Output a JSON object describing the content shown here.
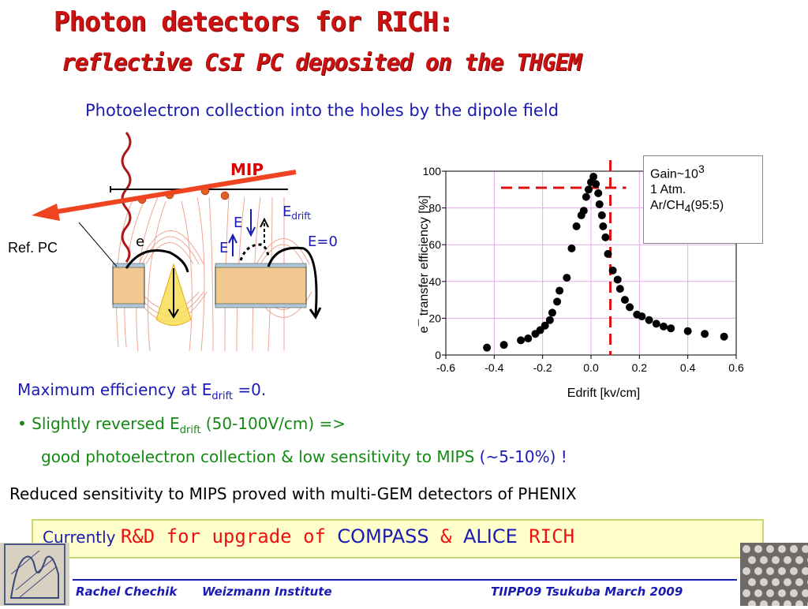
{
  "slide": {
    "title_line1": "Photon detectors for RICH:",
    "title_line2": "reflective CsI PC deposited on the THGEM",
    "subtitle": "Photoelectron  collection into the holes by the dipole field"
  },
  "diagram": {
    "mip_label": "MIP",
    "e_label": "E",
    "edrift_label": "E",
    "edrift_sub": "drift",
    "e0_label": "E=0",
    "electron_label": "e",
    "refpc_label": "Ref. PC"
  },
  "chart_data": {
    "type": "scatter",
    "xlabel": "Edrift [kv/cm]",
    "ylabel": "e¯ transfer efficiency [%]",
    "xlim": [
      -0.6,
      0.6
    ],
    "ylim": [
      0,
      100
    ],
    "xticks": [
      "-0.6",
      "-0.4",
      "-0.2",
      "0.0",
      "0.2",
      "0.4",
      "0.6"
    ],
    "yticks": [
      "0",
      "20",
      "40",
      "60",
      "80",
      "100"
    ],
    "grid": true,
    "points": [
      [
        -0.43,
        4
      ],
      [
        -0.36,
        5.5
      ],
      [
        -0.29,
        8
      ],
      [
        -0.26,
        9
      ],
      [
        -0.23,
        11.5
      ],
      [
        -0.21,
        13.5
      ],
      [
        -0.19,
        16
      ],
      [
        -0.17,
        19
      ],
      [
        -0.16,
        23
      ],
      [
        -0.14,
        29
      ],
      [
        -0.13,
        35
      ],
      [
        -0.1,
        42
      ],
      [
        -0.08,
        58
      ],
      [
        -0.06,
        70
      ],
      [
        -0.04,
        76
      ],
      [
        -0.03,
        78.5
      ],
      [
        -0.02,
        86
      ],
      [
        -0.01,
        90
      ],
      [
        0.0,
        94
      ],
      [
        0.01,
        97
      ],
      [
        0.02,
        93
      ],
      [
        0.03,
        88
      ],
      [
        0.035,
        82
      ],
      [
        0.045,
        76
      ],
      [
        0.05,
        70
      ],
      [
        0.06,
        64
      ],
      [
        0.07,
        55
      ],
      [
        0.09,
        46
      ],
      [
        0.11,
        41
      ],
      [
        0.12,
        36
      ],
      [
        0.14,
        30
      ],
      [
        0.16,
        26
      ],
      [
        0.19,
        22
      ],
      [
        0.21,
        21
      ],
      [
        0.24,
        19
      ],
      [
        0.27,
        17
      ],
      [
        0.3,
        15.5
      ],
      [
        0.33,
        14.5
      ],
      [
        0.4,
        13
      ],
      [
        0.47,
        11.5
      ],
      [
        0.55,
        10
      ]
    ],
    "vline_x": 0.08,
    "hline_y": 91,
    "legend": {
      "line1": "Gain~10",
      "line1_sup": "3",
      "line2": "1 Atm.",
      "line3a": "Ar/CH",
      "line3_sub": "4",
      "line3b": "(95:5)"
    }
  },
  "text": {
    "line1a": "Maximum efficiency at E",
    "line1_sub": "drift",
    "line1b": " =0.",
    "bullet": "•",
    "line2a": " Slightly reversed E",
    "line2_sub": "drift",
    "line2b": " (50-100V/cm) =>",
    "line3a": "good photoelectron collection & low sensitivity to MIPS",
    "line3b": " (~5-10%) !",
    "line4": "Reduced sensitivity to MIPS proved with multi-GEM detectors of PHENIX"
  },
  "rd_box": {
    "currently": "Currently ",
    "rd": "R&D for upgrade of ",
    "compass": "COMPASS",
    "amp": " & ",
    "alice": "ALICE",
    "rich": " RICH"
  },
  "footer": {
    "author": "Rachel Chechik",
    "institute": "Weizmann Institute",
    "event": "TIIPP09 Tsukuba March 2009"
  },
  "colors": {
    "title": "#cc1111",
    "blue": "#1a1ab4",
    "green": "#138a13",
    "red_dash": "#dd1111"
  }
}
